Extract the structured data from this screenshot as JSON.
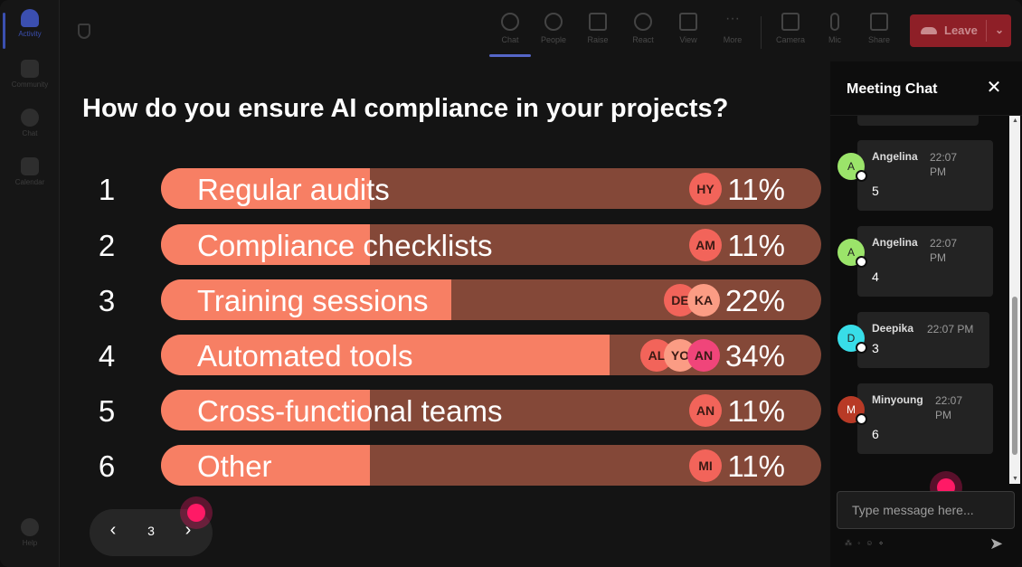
{
  "rail": {
    "items": [
      {
        "id": "activity",
        "label": "Activity"
      },
      {
        "id": "community",
        "label": "Community"
      },
      {
        "id": "chat",
        "label": "Chat"
      },
      {
        "id": "calendar",
        "label": "Calendar"
      }
    ],
    "help_label": "Help"
  },
  "toolbar": {
    "buttons": [
      {
        "id": "chat",
        "label": "Chat"
      },
      {
        "id": "people",
        "label": "People"
      },
      {
        "id": "raise",
        "label": "Raise"
      },
      {
        "id": "react",
        "label": "React"
      },
      {
        "id": "view",
        "label": "View"
      },
      {
        "id": "more",
        "label": "More"
      },
      {
        "id": "camera",
        "label": "Camera"
      },
      {
        "id": "mic",
        "label": "Mic"
      },
      {
        "id": "share",
        "label": "Share"
      }
    ],
    "leave_label": "Leave",
    "leave_chevron": "⌄"
  },
  "poll": {
    "question": "How do you ensure AI compliance in your projects?",
    "options": [
      {
        "number": "1",
        "label": "Regular audits",
        "percent": "11%",
        "fraction": 0.11,
        "voters": [
          {
            "initials": "HY",
            "color": "#f2645a"
          }
        ]
      },
      {
        "number": "2",
        "label": "Compliance checklists",
        "percent": "11%",
        "fraction": 0.11,
        "voters": [
          {
            "initials": "AM",
            "color": "#f2645a"
          }
        ]
      },
      {
        "number": "3",
        "label": "Training sessions",
        "percent": "22%",
        "fraction": 0.22,
        "voters": [
          {
            "initials": "DE",
            "color": "#f2645a"
          },
          {
            "initials": "KA",
            "color": "#fb9c84"
          }
        ]
      },
      {
        "number": "4",
        "label": "Automated tools",
        "percent": "34%",
        "fraction": 0.34,
        "voters": [
          {
            "initials": "AL",
            "color": "#f2645a"
          },
          {
            "initials": "YO",
            "color": "#fb9c84"
          },
          {
            "initials": "AN",
            "color": "#f0457a"
          }
        ]
      },
      {
        "number": "5",
        "label": "Cross-functional teams",
        "percent": "11%",
        "fraction": 0.11,
        "voters": [
          {
            "initials": "AN",
            "color": "#f2645a"
          }
        ]
      },
      {
        "number": "6",
        "label": "Other",
        "percent": "11%",
        "fraction": 0.11,
        "voters": [
          {
            "initials": "MI",
            "color": "#f2645a"
          }
        ]
      }
    ],
    "fill_colors": {
      "filled": "#f77f64",
      "empty": "#844838"
    }
  },
  "pager": {
    "prev_icon": "‹",
    "page": "3",
    "next_icon": "›"
  },
  "chat": {
    "title": "Meeting Chat",
    "close_icon": "✕",
    "messages": [
      {
        "avatar": "A",
        "avatar_color": "#9be46a",
        "name": "Angelina",
        "time": "22:07 PM",
        "text": "5"
      },
      {
        "avatar": "A",
        "avatar_color": "#9be46a",
        "name": "Angelina",
        "time": "22:07 PM",
        "text": "4"
      },
      {
        "avatar": "D",
        "avatar_color": "#38dde8",
        "name": "Deepika",
        "time": "22:07 PM",
        "text": "3"
      },
      {
        "avatar": "M",
        "avatar_color": "#b83a26",
        "name": "Minyoung",
        "time": "22:07 PM",
        "text": "6"
      }
    ],
    "input_placeholder": "Type message here...",
    "send_icon": "➤",
    "format_tools": "⁂ ◦ ☺ ⋄"
  }
}
